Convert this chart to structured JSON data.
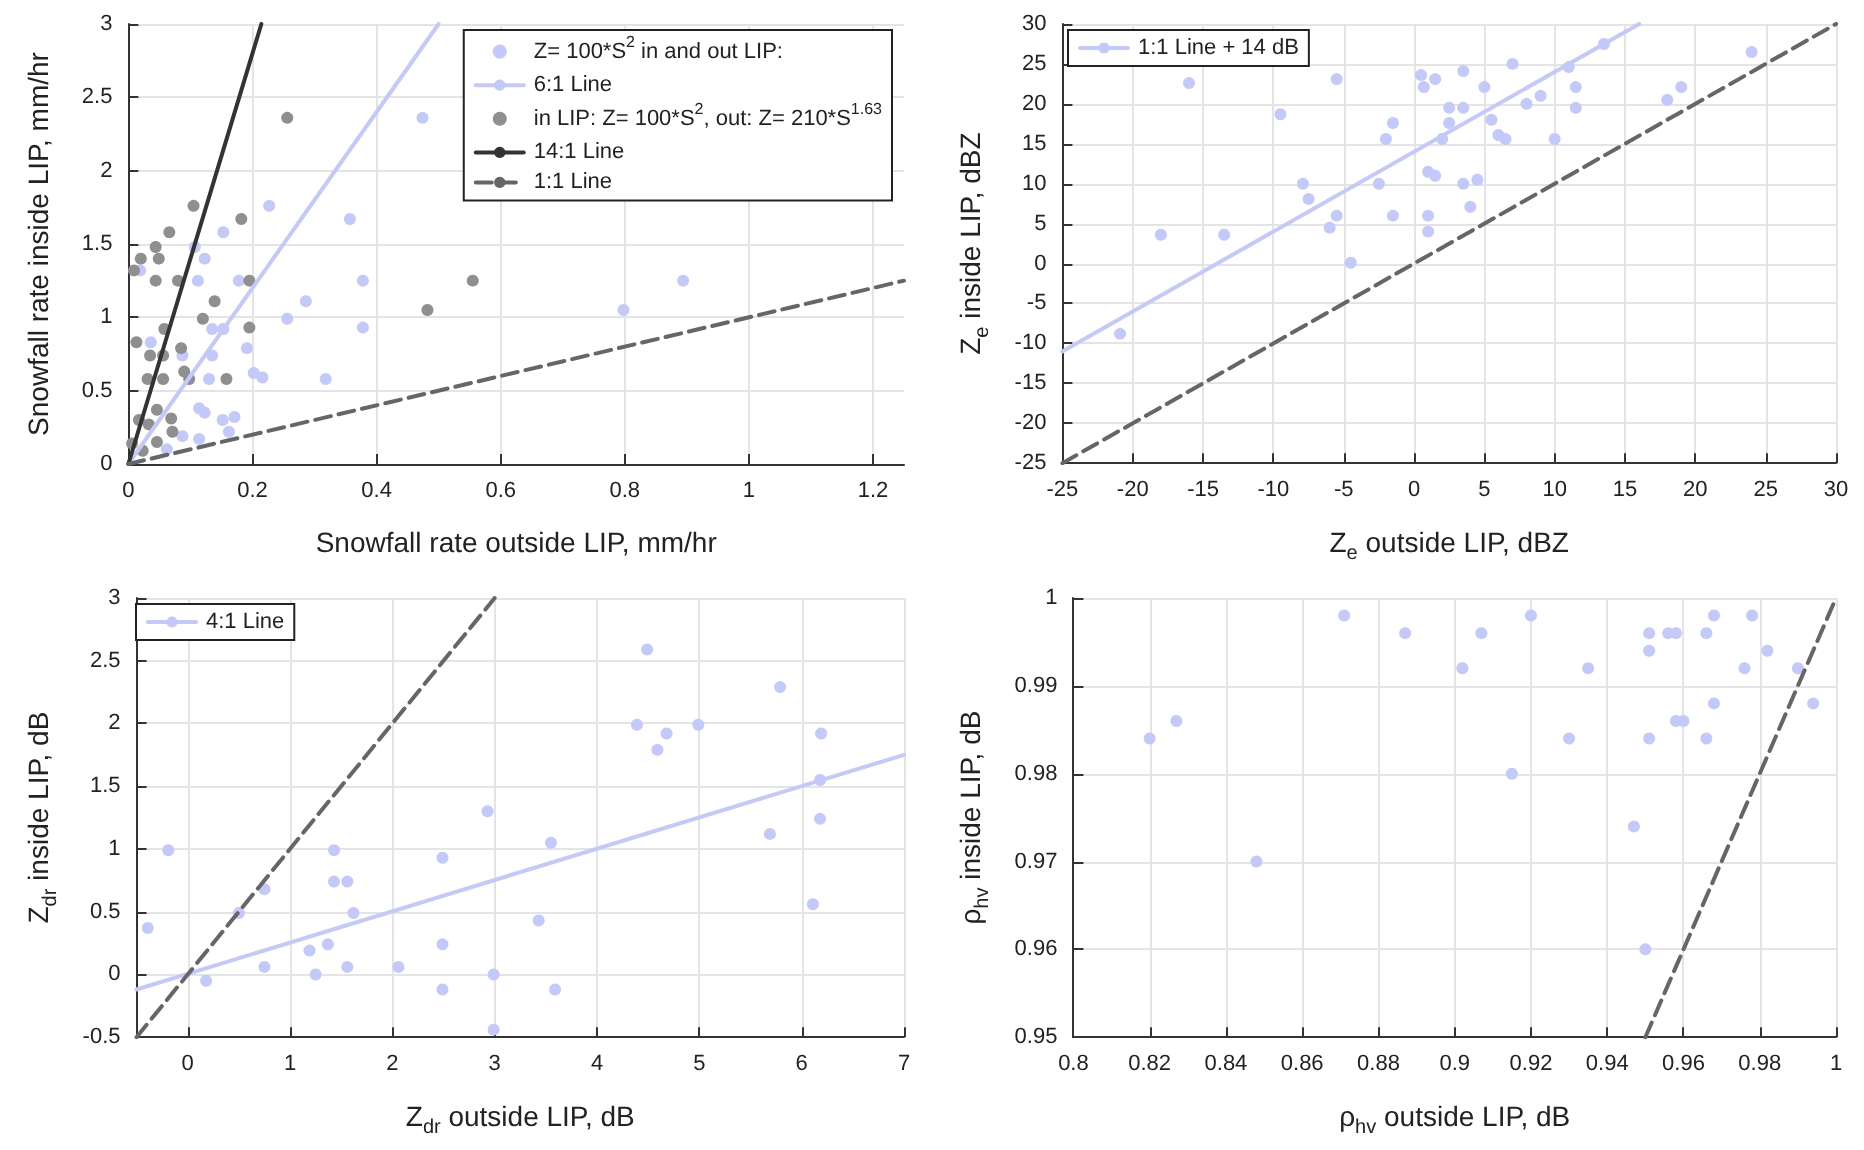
{
  "chart_data": [
    {
      "type": "scatter",
      "xlabel": "Snowfall rate outside LIP, mm/hr",
      "ylabel": "Snowfall rate inside LIP, mm/hr",
      "xlim": [
        0,
        1.25
      ],
      "ylim": [
        0,
        3
      ],
      "xticks": [
        0,
        0.2,
        0.4,
        0.6,
        0.8,
        1,
        1.2
      ],
      "yticks": [
        0,
        0.5,
        1,
        1.5,
        2,
        2.5,
        3
      ],
      "grid": true,
      "legend": "top right",
      "marker": "circle",
      "series": [
        {
          "name": "Z= 100*S$^{2}$ in and out LIP:",
          "color": "#c3c9fb",
          "x": [
            0.474,
            0.227,
            0.357,
            0.153,
            0.107,
            0.123,
            0.019,
            0.112,
            0.178,
            0.378,
            0.286,
            0.135,
            0.153,
            0.256,
            0.378,
            0.036,
            0.087,
            0.135,
            0.191,
            0.202,
            0.216,
            0.13,
            0.318,
            0.114,
            0.123,
            0.152,
            0.171,
            0.162,
            0.114,
            0.087,
            0.062,
            0.798,
            0.894
          ],
          "values": [
            2.36,
            1.76,
            1.67,
            1.58,
            1.48,
            1.4,
            1.32,
            1.25,
            1.25,
            1.25,
            1.11,
            0.92,
            0.92,
            0.99,
            0.93,
            0.83,
            0.74,
            0.74,
            0.79,
            0.62,
            0.59,
            0.58,
            0.58,
            0.38,
            0.35,
            0.3,
            0.32,
            0.22,
            0.17,
            0.19,
            0.1,
            1.05,
            1.25
          ]
        },
        {
          "name": "6:1 Line",
          "type": "line",
          "marker": "none",
          "color": "#c3c9fb",
          "line_style": "solid",
          "x": [
            0,
            0.5
          ],
          "values": [
            0,
            3
          ]
        },
        {
          "name": "in LIP: Z= 100*S$^{2}$, out: Z= 210*S$^{1.63}$",
          "color": "#8f8f8f",
          "x": [
            0.256,
            0.105,
            0.182,
            0.066,
            0.02,
            0.044,
            0.049,
            0.009,
            0.044,
            0.08,
            0.195,
            0.139,
            0.12,
            0.195,
            0.058,
            0.013,
            0.035,
            0.085,
            0.056,
            0.031,
            0.056,
            0.09,
            0.098,
            0.158,
            0.046,
            0.017,
            0.069,
            0.033,
            0.071,
            0.006,
            0.046,
            0.023,
            0.555,
            0.482
          ],
          "values": [
            2.36,
            1.76,
            1.67,
            1.58,
            1.4,
            1.48,
            1.4,
            1.32,
            1.25,
            1.25,
            1.25,
            1.11,
            0.99,
            0.93,
            0.92,
            0.83,
            0.74,
            0.79,
            0.74,
            0.58,
            0.58,
            0.63,
            0.58,
            0.58,
            0.37,
            0.3,
            0.31,
            0.27,
            0.22,
            0.14,
            0.15,
            0.09,
            1.25,
            1.05
          ]
        },
        {
          "name": "14:1 Line",
          "type": "line",
          "marker": "none",
          "color": "#333333",
          "line_style": "solid",
          "x": [
            0,
            0.2143
          ],
          "values": [
            0,
            3
          ]
        },
        {
          "name": "1:1 Line",
          "type": "line",
          "marker": "none",
          "color": "#666666",
          "line_style": "dashed",
          "x": [
            0,
            1.25
          ],
          "values": [
            0,
            1.25
          ]
        }
      ]
    },
    {
      "type": "scatter",
      "xlabel": "Z$_{e}$ outside LIP, dBZ",
      "ylabel": "Z$_{e}$ inside LIP, dBZ",
      "xlim": [
        -25,
        30
      ],
      "ylim": [
        -25,
        30
      ],
      "xticks": [
        -25,
        -20,
        -15,
        -10,
        -5,
        0,
        5,
        10,
        15,
        20,
        25,
        30
      ],
      "yticks": [
        -25,
        -20,
        -15,
        -10,
        -5,
        0,
        5,
        10,
        15,
        20,
        25,
        30
      ],
      "grid": true,
      "legend": "top left",
      "marker": "circle",
      "series": [
        {
          "color": "#c3c9fb",
          "x": [
            -20.9,
            -18,
            -16,
            -13.5,
            -9.5,
            -7.9,
            -7.5,
            -6,
            -5.5,
            -5.5,
            -4.5,
            -2.5,
            -2,
            -1.5,
            -1.5,
            0.5,
            0.7,
            1.5,
            1,
            1.5,
            1,
            1,
            2,
            2.5,
            2.5,
            3.5,
            3.5,
            3.5,
            4,
            4.5,
            5,
            5.5,
            6,
            6.5,
            7,
            8,
            9,
            10,
            11,
            11.5,
            11.5,
            13.5,
            18,
            19,
            24
          ],
          "values": [
            -8.8,
            3.6,
            22.6,
            3.6,
            18.7,
            10,
            8.1,
            4.5,
            23.1,
            6,
            0.1,
            10,
            15.6,
            17.6,
            6,
            23.6,
            22.1,
            23.1,
            11.5,
            11,
            6,
            4,
            15.6,
            19.5,
            17.6,
            24.1,
            19.5,
            10,
            7.1,
            10.5,
            22.1,
            18,
            16.1,
            15.6,
            25,
            20,
            21,
            15.6,
            24.6,
            22.1,
            19.5,
            27.5,
            20.5,
            22.1,
            26.5
          ]
        },
        {
          "name": "1:1 Line + 14 dB",
          "type": "line",
          "marker": "none",
          "color": "#c3c9fb",
          "line_style": "solid",
          "x": [
            -25,
            16
          ],
          "values": [
            -11,
            30
          ]
        },
        {
          "type": "line",
          "marker": "none",
          "color": "#666666",
          "line_style": "dashed",
          "x": [
            -25,
            30
          ],
          "values": [
            -25,
            30
          ]
        }
      ]
    },
    {
      "type": "scatter",
      "xlabel": "Z$_{dr}$ outside LIP, dB",
      "ylabel": "Z$_{dr}$ inside LIP, dB",
      "xlim": [
        -0.5,
        7
      ],
      "ylim": [
        -0.5,
        3
      ],
      "xticks": [
        0,
        1,
        2,
        3,
        4,
        5,
        6,
        7
      ],
      "yticks": [
        -0.5,
        0,
        0.5,
        1,
        1.5,
        2,
        2.5,
        3
      ],
      "grid": true,
      "legend": "top left",
      "marker": "circle",
      "series": [
        {
          "color": "#c3c9fb",
          "x": [
            -0.39,
            -0.19,
            0.18,
            0.5,
            0.75,
            0.75,
            1.19,
            1.25,
            1.37,
            1.43,
            1.43,
            1.56,
            1.56,
            1.62,
            2.06,
            2.49,
            2.49,
            2.49,
            2.93,
            2.99,
            2.99,
            3.43,
            3.55,
            3.59,
            4.39,
            4.49,
            4.59,
            4.68,
            4.99,
            5.69,
            5.79,
            6.11,
            6.19,
            6.18,
            6.18
          ],
          "values": [
            0.37,
            0.99,
            -0.05,
            0.49,
            0.68,
            0.06,
            0.19,
            0,
            0.24,
            0.99,
            0.74,
            0.74,
            0.06,
            0.49,
            0.06,
            0.93,
            0.24,
            -0.12,
            1.3,
            0,
            -0.44,
            0.43,
            1.05,
            -0.12,
            1.99,
            2.59,
            1.79,
            1.92,
            1.99,
            1.12,
            2.29,
            0.56,
            1.92,
            1.55,
            1.24
          ]
        },
        {
          "name": "4:1 Line",
          "type": "line",
          "marker": "none",
          "color": "#c3c9fb",
          "line_style": "solid",
          "x": [
            -0.5,
            7
          ],
          "values": [
            -0.12,
            1.75
          ]
        },
        {
          "type": "line",
          "marker": "none",
          "color": "#666666",
          "line_style": "dashed",
          "x": [
            -0.5,
            3
          ],
          "values": [
            -0.5,
            3
          ]
        }
      ]
    },
    {
      "type": "scatter",
      "xlabel": "ρ$_{hv}$ outside LIP, dB",
      "ylabel": "ρ$_{hv}$ inside LIP, dB",
      "xlim": [
        0.8,
        1
      ],
      "ylim": [
        0.95,
        1
      ],
      "xticks": [
        0.8,
        0.82,
        0.84,
        0.86,
        0.88,
        0.9,
        0.92,
        0.94,
        0.96,
        0.98,
        1
      ],
      "yticks": [
        0.95,
        0.96,
        0.97,
        0.98,
        0.99,
        1
      ],
      "grid": true,
      "marker": "circle",
      "series": [
        {
          "color": "#c3c9fb",
          "x": [
            0.82,
            0.827,
            0.848,
            0.871,
            0.887,
            0.902,
            0.907,
            0.915,
            0.92,
            0.93,
            0.935,
            0.947,
            0.95,
            0.951,
            0.951,
            0.951,
            0.956,
            0.958,
            0.958,
            0.96,
            0.966,
            0.966,
            0.968,
            0.968,
            0.976,
            0.978,
            0.982,
            0.99,
            0.994
          ],
          "values": [
            0.984,
            0.986,
            0.97,
            0.998,
            0.996,
            0.992,
            0.996,
            0.98,
            0.998,
            0.984,
            0.992,
            0.974,
            0.96,
            0.996,
            0.994,
            0.984,
            0.996,
            0.996,
            0.986,
            0.986,
            0.996,
            0.984,
            0.998,
            0.988,
            0.992,
            0.998,
            0.994,
            0.992,
            0.988
          ]
        },
        {
          "type": "line",
          "marker": "none",
          "color": "#666666",
          "line_style": "dashed",
          "x": [
            0.95,
            1
          ],
          "values": [
            0.95,
            1
          ]
        }
      ]
    }
  ]
}
